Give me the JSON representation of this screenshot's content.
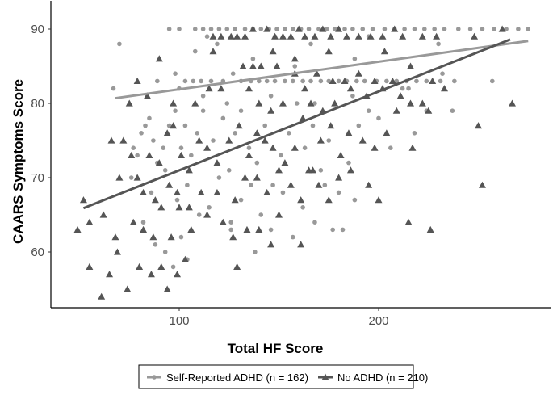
{
  "chart_data": {
    "type": "scatter",
    "xlabel": "Total HF Score",
    "ylabel": "CAARS Symptoms Score",
    "xlim": [
      40,
      280
    ],
    "ylim": [
      52,
      95
    ],
    "x_ticks": [
      100,
      200
    ],
    "y_ticks": [
      60,
      70,
      80,
      90
    ],
    "grid": false,
    "legend_placement": "bottom",
    "series": [
      {
        "name": "Self-Reported ADHD (n = 162)",
        "marker": "circle",
        "color": "#999999",
        "trend": {
          "x": [
            68,
            275
          ],
          "y": [
            80.7,
            88.4
          ]
        },
        "points": [
          [
            95,
            90
          ],
          [
            100,
            90
          ],
          [
            108,
            90
          ],
          [
            112,
            90
          ],
          [
            116,
            90
          ],
          [
            120,
            90
          ],
          [
            124,
            90
          ],
          [
            128,
            90
          ],
          [
            133,
            90
          ],
          [
            137,
            90
          ],
          [
            141,
            90
          ],
          [
            145,
            90
          ],
          [
            149,
            90
          ],
          [
            153,
            90
          ],
          [
            157,
            90
          ],
          [
            161,
            90
          ],
          [
            165,
            90
          ],
          [
            170,
            90
          ],
          [
            174,
            90
          ],
          [
            178,
            90
          ],
          [
            183,
            90
          ],
          [
            187,
            90
          ],
          [
            192,
            90
          ],
          [
            197,
            90
          ],
          [
            203,
            90
          ],
          [
            208,
            90
          ],
          [
            213,
            90
          ],
          [
            218,
            90
          ],
          [
            223,
            90
          ],
          [
            228,
            90
          ],
          [
            233,
            90
          ],
          [
            240,
            90
          ],
          [
            246,
            90
          ],
          [
            252,
            90
          ],
          [
            258,
            90
          ],
          [
            264,
            90
          ],
          [
            270,
            90
          ],
          [
            275,
            90
          ],
          [
            70,
            88
          ],
          [
            114,
            89
          ],
          [
            119,
            88
          ],
          [
            148,
            89
          ],
          [
            166,
            88
          ],
          [
            195,
            89
          ],
          [
            230,
            88
          ],
          [
            108,
            87
          ],
          [
            137,
            86
          ],
          [
            158,
            85
          ],
          [
            188,
            86
          ],
          [
            89,
            83
          ],
          [
            98,
            84
          ],
          [
            103,
            83
          ],
          [
            107,
            83
          ],
          [
            111,
            83
          ],
          [
            116,
            83
          ],
          [
            122,
            83
          ],
          [
            127,
            84
          ],
          [
            131,
            83
          ],
          [
            136,
            83
          ],
          [
            140,
            83
          ],
          [
            144,
            83
          ],
          [
            148,
            83
          ],
          [
            153,
            83
          ],
          [
            157,
            83
          ],
          [
            162,
            83
          ],
          [
            166,
            83
          ],
          [
            171,
            83
          ],
          [
            175,
            83
          ],
          [
            180,
            83
          ],
          [
            184,
            83
          ],
          [
            189,
            83
          ],
          [
            193,
            83
          ],
          [
            199,
            83
          ],
          [
            204,
            83
          ],
          [
            209,
            83
          ],
          [
            214,
            83
          ],
          [
            219,
            83
          ],
          [
            224,
            83
          ],
          [
            231,
            83
          ],
          [
            238,
            83
          ],
          [
            257,
            83
          ],
          [
            67,
            82
          ],
          [
            100,
            82
          ],
          [
            112,
            81
          ],
          [
            124,
            80
          ],
          [
            146,
            81
          ],
          [
            168,
            80
          ],
          [
            187,
            81
          ],
          [
            215,
            82
          ],
          [
            232,
            84
          ],
          [
            77,
            74
          ],
          [
            79,
            73
          ],
          [
            81,
            76
          ],
          [
            83,
            77
          ],
          [
            85,
            78
          ],
          [
            87,
            75
          ],
          [
            89,
            72
          ],
          [
            92,
            74
          ],
          [
            95,
            77
          ],
          [
            98,
            79
          ],
          [
            101,
            74
          ],
          [
            103,
            77
          ],
          [
            106,
            73
          ],
          [
            109,
            76
          ],
          [
            112,
            79
          ],
          [
            117,
            75
          ],
          [
            122,
            78
          ],
          [
            125,
            71
          ],
          [
            128,
            76
          ],
          [
            131,
            79
          ],
          [
            135,
            74
          ],
          [
            139,
            72
          ],
          [
            143,
            77
          ],
          [
            147,
            69
          ],
          [
            151,
            73
          ],
          [
            155,
            76
          ],
          [
            159,
            80
          ],
          [
            163,
            74
          ],
          [
            167,
            77
          ],
          [
            171,
            71
          ],
          [
            175,
            75
          ],
          [
            180,
            68
          ],
          [
            185,
            72
          ],
          [
            190,
            77
          ],
          [
            195,
            79
          ],
          [
            200,
            78
          ],
          [
            206,
            74
          ],
          [
            212,
            82
          ],
          [
            218,
            76
          ],
          [
            224,
            79
          ],
          [
            237,
            79
          ],
          [
            76,
            70
          ],
          [
            86,
            68
          ],
          [
            93,
            71
          ],
          [
            99,
            67
          ],
          [
            104,
            69
          ],
          [
            110,
            65
          ],
          [
            115,
            66
          ],
          [
            120,
            70
          ],
          [
            126,
            64
          ],
          [
            131,
            67
          ],
          [
            136,
            69
          ],
          [
            141,
            65
          ],
          [
            146,
            63
          ],
          [
            152,
            68
          ],
          [
            157,
            62
          ],
          [
            162,
            66
          ],
          [
            168,
            64
          ],
          [
            173,
            69
          ],
          [
            177,
            63
          ],
          [
            182,
            63
          ],
          [
            188,
            67
          ],
          [
            82,
            64
          ],
          [
            88,
            61
          ],
          [
            93,
            60
          ],
          [
            97,
            58
          ],
          [
            101,
            62
          ],
          [
            104,
            59
          ],
          [
            126,
            63
          ],
          [
            138,
            60
          ]
        ]
      },
      {
        "name": "No ADHD (n = 210)",
        "marker": "triangle",
        "color": "#555555",
        "trend": {
          "x": [
            52,
            266
          ],
          "y": [
            65.9,
            88.6
          ]
        },
        "points": [
          [
            117,
            89
          ],
          [
            121,
            89
          ],
          [
            126,
            89
          ],
          [
            129,
            89
          ],
          [
            133,
            89
          ],
          [
            137,
            90
          ],
          [
            144,
            90
          ],
          [
            148,
            89
          ],
          [
            152,
            89
          ],
          [
            156,
            89
          ],
          [
            160,
            90
          ],
          [
            163,
            89
          ],
          [
            168,
            89
          ],
          [
            172,
            90
          ],
          [
            176,
            89
          ],
          [
            180,
            90
          ],
          [
            184,
            89
          ],
          [
            190,
            89
          ],
          [
            196,
            89
          ],
          [
            202,
            89
          ],
          [
            208,
            90
          ],
          [
            212,
            89
          ],
          [
            222,
            89
          ],
          [
            229,
            89
          ],
          [
            248,
            89
          ],
          [
            262,
            90
          ],
          [
            117,
            87
          ],
          [
            147,
            87
          ],
          [
            158,
            86
          ],
          [
            175,
            87
          ],
          [
            203,
            87
          ],
          [
            90,
            86
          ],
          [
            132,
            85
          ],
          [
            137,
            85
          ],
          [
            141,
            85
          ],
          [
            149,
            85
          ],
          [
            158,
            84
          ],
          [
            169,
            84
          ],
          [
            177,
            83
          ],
          [
            183,
            83
          ],
          [
            190,
            84
          ],
          [
            198,
            83
          ],
          [
            207,
            83
          ],
          [
            216,
            85
          ],
          [
            227,
            83
          ],
          [
            233,
            82
          ],
          [
            75,
            80
          ],
          [
            79,
            83
          ],
          [
            84,
            81
          ],
          [
            97,
            80
          ],
          [
            108,
            80
          ],
          [
            115,
            82
          ],
          [
            121,
            82
          ],
          [
            135,
            82
          ],
          [
            140,
            80
          ],
          [
            146,
            79
          ],
          [
            152,
            80
          ],
          [
            163,
            82
          ],
          [
            166,
            80
          ],
          [
            172,
            79
          ],
          [
            178,
            80
          ],
          [
            186,
            82
          ],
          [
            194,
            81
          ],
          [
            202,
            82
          ],
          [
            211,
            81
          ],
          [
            216,
            80
          ],
          [
            222,
            80
          ],
          [
            66,
            75
          ],
          [
            72,
            75
          ],
          [
            76,
            73
          ],
          [
            79,
            70
          ],
          [
            85,
            73
          ],
          [
            90,
            72
          ],
          [
            94,
            76
          ],
          [
            97,
            77
          ],
          [
            101,
            73
          ],
          [
            105,
            71
          ],
          [
            110,
            75
          ],
          [
            114,
            74
          ],
          [
            119,
            72
          ],
          [
            125,
            75
          ],
          [
            130,
            77
          ],
          [
            135,
            73
          ],
          [
            139,
            76
          ],
          [
            143,
            75
          ],
          [
            147,
            74
          ],
          [
            153,
            72
          ],
          [
            158,
            74
          ],
          [
            162,
            78
          ],
          [
            167,
            71
          ],
          [
            171,
            75
          ],
          [
            176,
            77
          ],
          [
            181,
            73
          ],
          [
            185,
            76
          ],
          [
            192,
            75
          ],
          [
            198,
            74
          ],
          [
            204,
            76
          ],
          [
            209,
            79
          ],
          [
            217,
            74
          ],
          [
            225,
            79
          ],
          [
            250,
            77
          ],
          [
            267,
            80
          ],
          [
            70,
            70
          ],
          [
            82,
            68
          ],
          [
            88,
            67
          ],
          [
            95,
            69
          ],
          [
            99,
            68
          ],
          [
            105,
            66
          ],
          [
            111,
            68
          ],
          [
            119,
            68
          ],
          [
            128,
            67
          ],
          [
            133,
            70
          ],
          [
            139,
            70
          ],
          [
            144,
            68
          ],
          [
            150,
            71
          ],
          [
            156,
            69
          ],
          [
            161,
            67
          ],
          [
            165,
            71
          ],
          [
            170,
            69
          ],
          [
            175,
            67
          ],
          [
            180,
            70
          ],
          [
            186,
            71
          ],
          [
            195,
            69
          ],
          [
            200,
            67
          ],
          [
            252,
            69
          ],
          [
            49,
            63
          ],
          [
            52,
            67
          ],
          [
            55,
            64
          ],
          [
            62,
            65
          ],
          [
            68,
            62
          ],
          [
            77,
            64
          ],
          [
            82,
            63
          ],
          [
            87,
            62
          ],
          [
            91,
            66
          ],
          [
            96,
            62
          ],
          [
            100,
            66
          ],
          [
            106,
            63
          ],
          [
            114,
            65
          ],
          [
            122,
            64
          ],
          [
            127,
            62
          ],
          [
            134,
            63
          ],
          [
            140,
            63
          ],
          [
            146,
            61
          ],
          [
            150,
            65
          ],
          [
            161,
            61
          ],
          [
            215,
            64
          ],
          [
            226,
            63
          ],
          [
            55,
            58
          ],
          [
            61,
            54
          ],
          [
            65,
            57
          ],
          [
            69,
            60
          ],
          [
            74,
            55
          ],
          [
            80,
            58
          ],
          [
            86,
            57
          ],
          [
            91,
            58
          ],
          [
            94,
            55
          ],
          [
            99,
            57
          ],
          [
            103,
            59
          ],
          [
            129,
            58
          ]
        ]
      }
    ]
  }
}
